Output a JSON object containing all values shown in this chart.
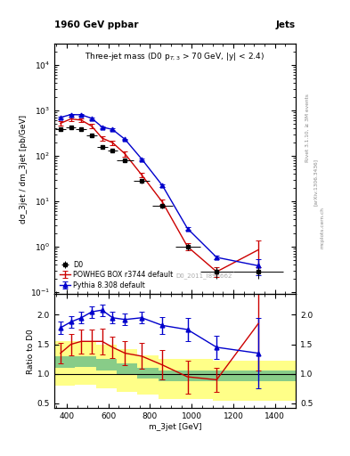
{
  "title_left": "1960 GeV ppbar",
  "title_right": "Jets",
  "plot_title": "Three-jet mass (D0 p$_{T,3}$ > 70 GeV, |y| < 2.4)",
  "xlabel": "m_3jet [GeV]",
  "ylabel_main": "dσ_3jet / dm_3jet [pb/GeV]",
  "ylabel_ratio": "Ratio to D0",
  "watermark": "D0_2011_I895662",
  "rivet_label": "Rivet 3.1.10, ≥ 3M events",
  "arxiv_label": "[arXiv:1306.3436]",
  "mcplots_label": "mcplots.cern.ch",
  "d0_x": [
    370,
    420,
    470,
    520,
    570,
    620,
    680,
    760,
    860,
    980,
    1120,
    1320
  ],
  "d0_y": [
    390,
    420,
    390,
    280,
    155,
    130,
    80,
    28,
    8.0,
    1.0,
    0.28,
    0.28
  ],
  "d0_yerr": [
    30,
    30,
    30,
    22,
    12,
    10,
    7,
    3,
    0.9,
    0.15,
    0.08,
    0.08
  ],
  "d0_xerr": [
    25,
    25,
    25,
    25,
    25,
    25,
    40,
    40,
    50,
    60,
    80,
    120
  ],
  "powheg_x": [
    370,
    420,
    470,
    520,
    570,
    620,
    680,
    760,
    860,
    980,
    1120,
    1320
  ],
  "powheg_y": [
    520,
    650,
    610,
    450,
    245,
    195,
    110,
    38,
    9.5,
    1.0,
    0.28,
    0.85
  ],
  "powheg_yerr_lo": [
    60,
    70,
    65,
    50,
    28,
    22,
    13,
    5,
    1.2,
    0.18,
    0.07,
    0.5
  ],
  "powheg_yerr_hi": [
    60,
    70,
    65,
    50,
    28,
    22,
    13,
    5,
    1.2,
    0.18,
    0.07,
    0.5
  ],
  "powheg_color": "#cc0000",
  "pythia_x": [
    370,
    420,
    470,
    520,
    570,
    620,
    680,
    760,
    860,
    980,
    1120,
    1320
  ],
  "pythia_y": [
    700,
    810,
    800,
    670,
    430,
    380,
    230,
    85,
    22,
    2.5,
    0.58,
    0.38
  ],
  "pythia_yerr": [
    30,
    30,
    30,
    25,
    18,
    16,
    10,
    4,
    1.2,
    0.18,
    0.05,
    0.15
  ],
  "pythia_color": "#0000cc",
  "ratio_powheg_x": [
    370,
    420,
    470,
    520,
    570,
    620,
    680,
    760,
    860,
    980,
    1120,
    1320
  ],
  "ratio_powheg_y": [
    1.35,
    1.5,
    1.55,
    1.55,
    1.55,
    1.45,
    1.35,
    1.3,
    1.15,
    0.95,
    0.9,
    1.85
  ],
  "ratio_powheg_yerr": [
    0.18,
    0.18,
    0.2,
    0.2,
    0.22,
    0.18,
    0.2,
    0.22,
    0.25,
    0.28,
    0.2,
    0.8
  ],
  "ratio_pythia_x": [
    370,
    420,
    470,
    520,
    570,
    620,
    680,
    760,
    860,
    980,
    1120,
    1320
  ],
  "ratio_pythia_y": [
    1.78,
    1.88,
    1.95,
    2.05,
    2.08,
    1.95,
    1.92,
    1.95,
    1.82,
    1.75,
    1.45,
    1.35
  ],
  "ratio_pythia_yerr": [
    0.1,
    0.1,
    0.1,
    0.1,
    0.1,
    0.1,
    0.1,
    0.1,
    0.14,
    0.2,
    0.2,
    0.6
  ],
  "band_x_edges": [
    340,
    440,
    540,
    640,
    740,
    840,
    940,
    1100,
    1500
  ],
  "band_green_lo": [
    1.1,
    1.12,
    1.05,
    1.0,
    0.92,
    0.88,
    0.88,
    0.88
  ],
  "band_green_hi": [
    1.3,
    1.3,
    1.25,
    1.18,
    1.1,
    1.05,
    1.05,
    1.05
  ],
  "band_yellow_lo": [
    0.8,
    0.82,
    0.75,
    0.7,
    0.65,
    0.58,
    0.58,
    0.55
  ],
  "band_yellow_hi": [
    1.55,
    1.55,
    1.5,
    1.42,
    1.32,
    1.25,
    1.25,
    1.22
  ],
  "xlim": [
    340,
    1500
  ],
  "ylim_main": [
    0.09,
    30000
  ],
  "ylim_ratio": [
    0.42,
    2.35
  ],
  "ratio_yticks": [
    0.5,
    1.0,
    1.5,
    2.0
  ]
}
